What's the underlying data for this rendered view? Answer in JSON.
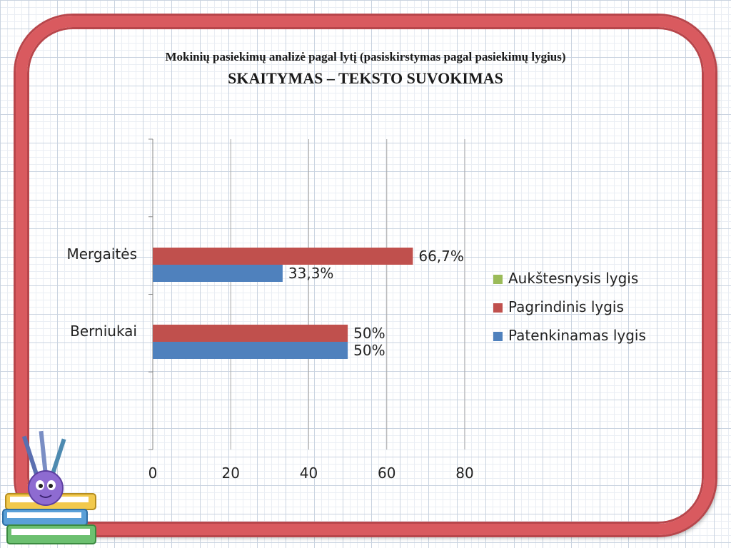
{
  "header": {
    "title": "Mokinių pasiekimų analizė pagal lytį (pasiskirstymas pagal pasiekimų lygius)",
    "subtitle": "SKAITYMAS – TEKSTO SUVOKIMAS"
  },
  "colors": {
    "frame": "#d95a5f",
    "aukstesnysis": "#9bbb59",
    "pagrindinis": "#c0504d",
    "patenkinamas": "#4f81bd"
  },
  "chart_data": {
    "type": "bar",
    "orientation": "horizontal",
    "categories": [
      "Berniukai",
      "Mergaitės"
    ],
    "series": [
      {
        "name": "Patenkinamas lygis",
        "color": "#4f81bd",
        "values": [
          50,
          33.3
        ],
        "labels": [
          "50%",
          "33,3%"
        ]
      },
      {
        "name": "Pagrindinis lygis",
        "color": "#c0504d",
        "values": [
          50,
          66.7
        ],
        "labels": [
          "50%",
          "66,7%"
        ]
      },
      {
        "name": "Aukštesnysis lygis",
        "color": "#9bbb59",
        "values": [
          0,
          0
        ],
        "labels": [
          "",
          ""
        ]
      }
    ],
    "legend_order": [
      "Aukštesnysis lygis",
      "Pagrindinis lygis",
      "Patenkinamas lygis"
    ],
    "xlim": [
      0,
      80
    ],
    "xticks": [
      "0",
      "20",
      "40",
      "60",
      "80"
    ],
    "grid": "vertical",
    "legend": "right"
  },
  "decoration": {
    "icon": "books-with-ball-character-icon"
  }
}
